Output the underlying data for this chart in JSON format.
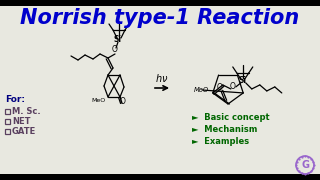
{
  "title": "Norrish type-1 Reaction",
  "title_color": "#0000CC",
  "title_fontsize": 15,
  "bg_color": "#E8E8E0",
  "for_label": "For:",
  "for_color": "#000080",
  "checkboxes": [
    "M. Sc.",
    "NET",
    "GATE"
  ],
  "checkbox_color": "#5a4060",
  "bullet_items": [
    "Basic concept",
    "Mechanism",
    "Examples"
  ],
  "bullet_color": "#006600",
  "hv_color": "#000000",
  "bar_color": "#000000",
  "logo_color": "#9966CC"
}
